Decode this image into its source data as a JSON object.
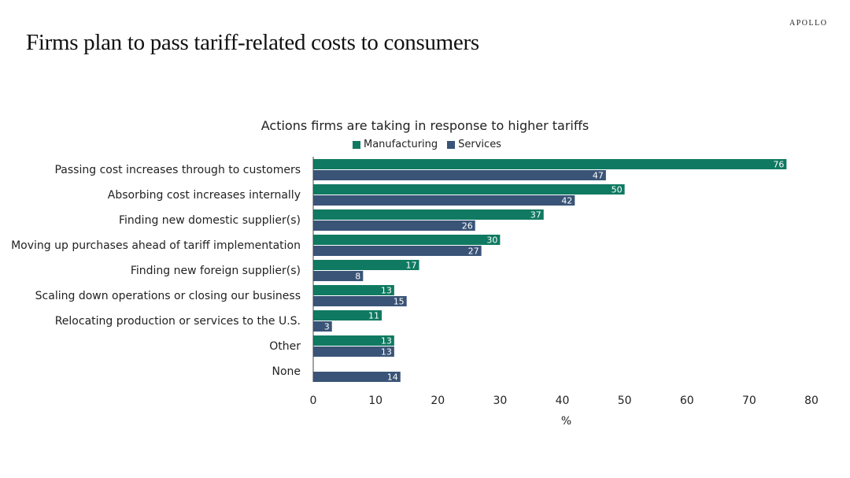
{
  "brand": "APOLLO",
  "page_title": "Firms plan to pass tariff-related costs to consumers",
  "colors": {
    "manufacturing": "#0f7a61",
    "services": "#3a5477",
    "axis": "#444444",
    "text": "#222222"
  },
  "chart_data": {
    "type": "bar",
    "orientation": "horizontal",
    "title": "Actions firms are taking in response to higher tariffs",
    "xlabel": "%",
    "ylabel": "",
    "xlim": [
      0,
      80
    ],
    "xticks": [
      0,
      10,
      20,
      30,
      40,
      50,
      60,
      70,
      80
    ],
    "grid": false,
    "legend_position": "top-center",
    "categories": [
      "Passing cost increases through to customers",
      "Absorbing cost increases internally",
      "Finding new domestic supplier(s)",
      "Moving up purchases ahead of tariff implementation",
      "Finding new foreign supplier(s)",
      "Scaling down operations or closing our business",
      "Relocating production or services to the U.S.",
      "Other",
      "None"
    ],
    "series": [
      {
        "name": "Manufacturing",
        "values": [
          76,
          50,
          37,
          30,
          17,
          13,
          11,
          13,
          0
        ]
      },
      {
        "name": "Services",
        "values": [
          47,
          42,
          26,
          27,
          8,
          15,
          3,
          13,
          14
        ]
      }
    ]
  }
}
